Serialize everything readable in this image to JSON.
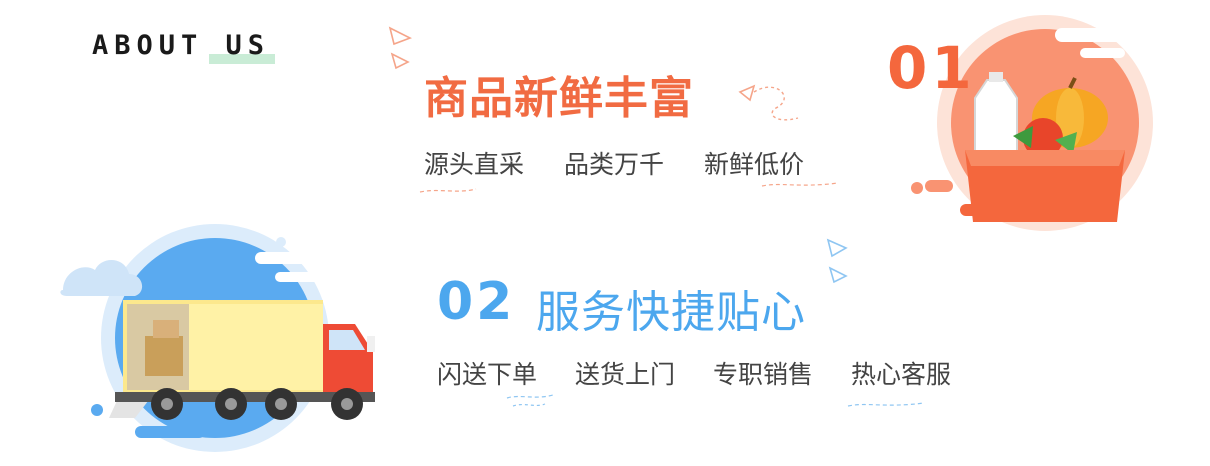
{
  "header": {
    "about": "ABOUT US"
  },
  "section1": {
    "number": "01",
    "title": "商品新鲜丰富",
    "items": [
      "源头直采",
      "品类万千",
      "新鲜低价"
    ]
  },
  "section2": {
    "number": "02",
    "title": "服务快捷贴心",
    "items": [
      "闪送下单",
      "送货上门",
      "专职销售",
      "热心客服"
    ]
  },
  "colors": {
    "orange": "#f16b42",
    "blue": "#4ca7ee",
    "highlight": "#c9ecd6"
  },
  "icons": {
    "section1": "grocery-box-icon",
    "section2": "delivery-truck-icon"
  }
}
